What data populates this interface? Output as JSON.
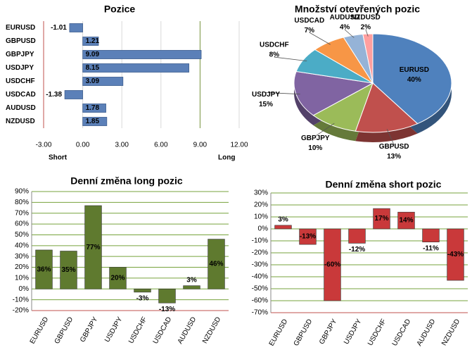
{
  "chart_data": [
    {
      "type": "hbar",
      "title": "Pozice",
      "categories": [
        "EURUSD",
        "GBPUSD",
        "GBPJPY",
        "USDJPY",
        "USDCHF",
        "USDCAD",
        "AUDUSD",
        "NZDUSD"
      ],
      "values": [
        -1.01,
        1.21,
        9.09,
        8.15,
        3.09,
        -1.38,
        1.78,
        1.85
      ],
      "color": "#5b80b8",
      "xlim": [
        -3,
        12
      ],
      "xticks": [
        {
          "value": -3,
          "label": "-3.00"
        },
        {
          "value": 0,
          "label": "0.00"
        },
        {
          "value": 3,
          "label": "3.00"
        },
        {
          "value": 6,
          "label": "6.00"
        },
        {
          "value": 9,
          "label": "9.00"
        },
        {
          "value": 12,
          "label": "12.00"
        }
      ],
      "annotations": [
        "Short",
        "Long"
      ]
    },
    {
      "type": "pie",
      "title": "Množství otevřených pozic",
      "categories": [
        "EURUSD",
        "GBPUSD",
        "GBPJPY",
        "USDJPY",
        "USDCHF",
        "USDCAD",
        "AUDUSD",
        "NZDUSD"
      ],
      "values": [
        40,
        13,
        10,
        15,
        8,
        7,
        4,
        2
      ],
      "value_labels": [
        "40%",
        "13%",
        "10%",
        "15%",
        "8%",
        "7%",
        "4%",
        "2%"
      ],
      "colors": [
        "#4f81bd",
        "#c0504d",
        "#9bbb59",
        "#8064a2",
        "#4bacc6",
        "#f79646",
        "#95b3d7",
        "#ff9f9f"
      ]
    },
    {
      "type": "bar",
      "title": "Denní změna long pozic",
      "categories": [
        "EURUSD",
        "GBPUSD",
        "GBPJPY",
        "USDJPY",
        "USDCHF",
        "USDCAD",
        "AUDUSD",
        "NZDUSD"
      ],
      "values": [
        36,
        35,
        77,
        20,
        -3,
        -13,
        3,
        46
      ],
      "value_labels": [
        "36%",
        "35%",
        "77%",
        "20%",
        "-3%",
        "-13%",
        "3%",
        "46%"
      ],
      "color": "#5f7a2f",
      "grid": true,
      "ylim": [
        -20,
        90
      ],
      "yticks": [
        {
          "value": -20,
          "label": "-20%"
        },
        {
          "value": -10,
          "label": "-10%"
        },
        {
          "value": 0,
          "label": "0%"
        },
        {
          "value": 10,
          "label": "10%"
        },
        {
          "value": 20,
          "label": "20%"
        },
        {
          "value": 30,
          "label": "30%"
        },
        {
          "value": 40,
          "label": "40%"
        },
        {
          "value": 50,
          "label": "50%"
        },
        {
          "value": 60,
          "label": "60%"
        },
        {
          "value": 70,
          "label": "70%"
        },
        {
          "value": 80,
          "label": "80%"
        },
        {
          "value": 90,
          "label": "90%"
        }
      ]
    },
    {
      "type": "bar",
      "title": "Denní změna short pozic",
      "categories": [
        "EURUSD",
        "GBPUSD",
        "GBPJPY",
        "USDJPY",
        "USDCHF",
        "USDCAD",
        "AUDUSD",
        "NZDUSD"
      ],
      "values": [
        3,
        -13,
        -60,
        -12,
        17,
        14,
        -11,
        -43
      ],
      "value_labels": [
        "3%",
        "-13%",
        "-60%",
        "-12%",
        "17%",
        "14%",
        "-11%",
        "-43%"
      ],
      "color": "#c9393a",
      "grid": true,
      "ylim": [
        -70,
        30
      ],
      "yticks": [
        {
          "value": -70,
          "label": "-70%"
        },
        {
          "value": -60,
          "label": "-60%"
        },
        {
          "value": -50,
          "label": "-50%"
        },
        {
          "value": -40,
          "label": "-40%"
        },
        {
          "value": -30,
          "label": "-30%"
        },
        {
          "value": -20,
          "label": "-20%"
        },
        {
          "value": -10,
          "label": "-10%"
        },
        {
          "value": 0,
          "label": "0%"
        },
        {
          "value": 10,
          "label": "10%"
        },
        {
          "value": 20,
          "label": "20%"
        },
        {
          "value": 30,
          "label": "30%"
        }
      ]
    }
  ]
}
